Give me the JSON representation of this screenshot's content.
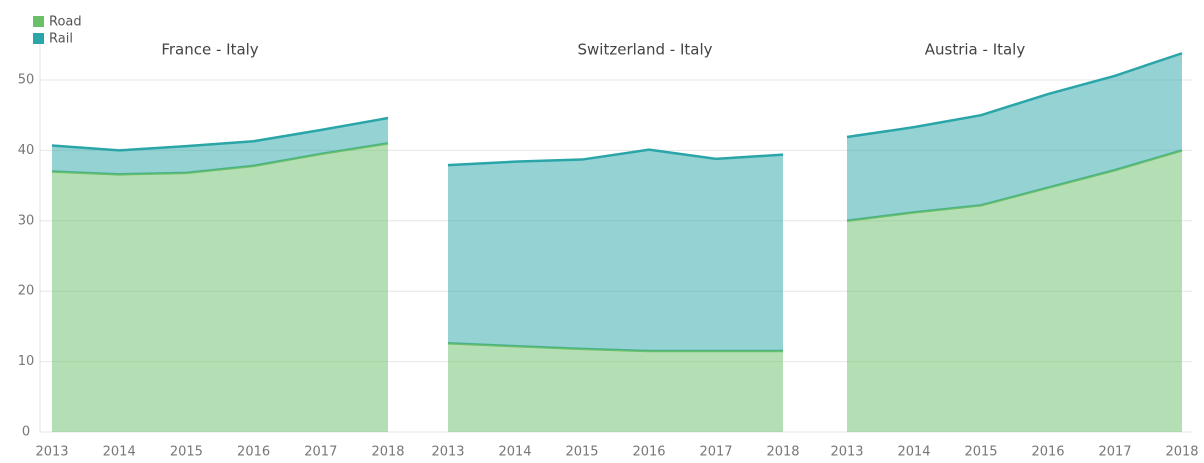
{
  "chart_data": {
    "type": "area",
    "stacked": true,
    "ylim": [
      0,
      55
    ],
    "yticks": [
      0,
      10,
      20,
      30,
      40,
      50
    ],
    "grid": true,
    "legend": "top-left",
    "series": [
      {
        "name": "Road",
        "color": "#6abf69"
      },
      {
        "name": "Rail",
        "color": "#2aa5a8"
      }
    ],
    "panels": [
      {
        "title": "France - Italy",
        "x": [
          2013,
          2014,
          2015,
          2016,
          2017,
          2018
        ],
        "series": [
          {
            "values": [
              37,
              36.6,
              36.8,
              37.8,
              39.5,
              41
            ]
          },
          {
            "values": [
              3.7,
              3.4,
              3.8,
              3.5,
              3.4,
              3.6
            ]
          }
        ]
      },
      {
        "title": "Switzerland - Italy",
        "x": [
          2013,
          2014,
          2015,
          2016,
          2017,
          2018
        ],
        "series": [
          {
            "values": [
              12.6,
              12.2,
              11.8,
              11.5,
              11.5,
              11.5
            ]
          },
          {
            "values": [
              25.3,
              26.2,
              26.9,
              28.6,
              27.3,
              27.9
            ]
          }
        ]
      },
      {
        "title": "Austria - Italy",
        "x": [
          2013,
          2014,
          2015,
          2016,
          2017,
          2018
        ],
        "series": [
          {
            "values": [
              30,
              31.2,
              32.2,
              34.7,
              37.2,
              40
            ]
          },
          {
            "values": [
              11.9,
              12.1,
              12.8,
              13.3,
              13.4,
              13.8
            ]
          }
        ]
      }
    ]
  }
}
